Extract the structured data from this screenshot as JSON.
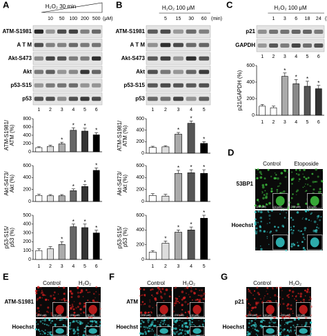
{
  "panels": {
    "A": {
      "letter": "A",
      "treatment": "H₂O₂ 30 min",
      "doses": [
        "10",
        "50",
        "100",
        "200",
        "500"
      ],
      "unit": "(μM)",
      "blots": [
        "ATM-S1981",
        "A T M",
        "Akt-S473",
        "Akt",
        "p53-S15",
        "p53"
      ],
      "lanes": [
        "1",
        "2",
        "3",
        "4",
        "5",
        "6"
      ]
    },
    "B": {
      "letter": "B",
      "treatment": "H₂O₂ 100 μM",
      "doses": [
        "5",
        "15",
        "30",
        "60"
      ],
      "unit": "(min)",
      "blots": [
        "ATM-S1981",
        "A T M",
        "Akt-S473",
        "Akt",
        "p53-S15",
        "p53"
      ],
      "lanes": [
        "1",
        "2",
        "3",
        "4",
        "5"
      ]
    },
    "C": {
      "letter": "C",
      "treatment": "H₂O₂ 100 μM",
      "doses": [
        "1",
        "3",
        "6",
        "18",
        "24"
      ],
      "unit": "(hr)",
      "blots": [
        "p21",
        "GAPDH"
      ],
      "lanes": [
        "1",
        "2",
        "3",
        "4",
        "5",
        "6"
      ]
    },
    "D": {
      "letter": "D",
      "columns": [
        "Control",
        "Etoposide"
      ],
      "rows": [
        "53BP1",
        "Hoechst"
      ],
      "scale_labels": [
        "(200 μM)",
        "(10 μM)"
      ]
    },
    "E": {
      "letter": "E",
      "columns": [
        "Control",
        "H₂O₂"
      ],
      "rows": [
        "ATM-S1981",
        "Hoechst"
      ],
      "scale_labels": [
        "(200 μM)",
        "(10 μM)"
      ]
    },
    "F": {
      "letter": "F",
      "columns": [
        "Control",
        "H₂O₂"
      ],
      "rows": [
        "ATM",
        "Hoechst"
      ],
      "scale_labels": [
        "(200 μM)",
        "(10 μM)"
      ]
    },
    "G": {
      "letter": "G",
      "columns": [
        "Control",
        "H₂O₂"
      ],
      "rows": [
        "p21",
        "Hoechst"
      ],
      "scale_labels": [
        "(200 μM)",
        "(10 μM)"
      ]
    }
  },
  "chart_data": [
    {
      "type": "bar",
      "ylabel": [
        "ATM-S1981/",
        "ATM (%)"
      ],
      "values": [
        100,
        130,
        190,
        520,
        500,
        410
      ],
      "errors": [
        20,
        30,
        40,
        60,
        70,
        50
      ],
      "colors": [
        "#ffffff",
        "#dddddd",
        "#aaaaaa",
        "#666666",
        "#333333",
        "#000000"
      ],
      "asterisk": "*",
      "starred": [
        false,
        false,
        true,
        true,
        true,
        true
      ],
      "ylim": [
        0,
        800
      ],
      "yticks": [
        0,
        200,
        400,
        600,
        800
      ]
    },
    {
      "type": "bar",
      "ylabel": [
        "Akt-S473/",
        "Akt (%)"
      ],
      "values": [
        100,
        95,
        95,
        180,
        250,
        520
      ],
      "errors": [
        20,
        20,
        20,
        30,
        30,
        40
      ],
      "colors": [
        "#ffffff",
        "#dddddd",
        "#aaaaaa",
        "#666666",
        "#333333",
        "#000000"
      ],
      "asterisk": "*",
      "starred": [
        false,
        false,
        false,
        true,
        true,
        true
      ],
      "ylim": [
        0,
        600
      ],
      "yticks": [
        0,
        200,
        400,
        600
      ]
    },
    {
      "type": "bar",
      "ylabel": [
        "p53-S15/",
        "p53 (%)"
      ],
      "values": [
        100,
        120,
        170,
        370,
        360,
        300
      ],
      "errors": [
        20,
        25,
        30,
        30,
        40,
        30
      ],
      "colors": [
        "#ffffff",
        "#dddddd",
        "#aaaaaa",
        "#666666",
        "#333333",
        "#000000"
      ],
      "asterisk": "*",
      "starred": [
        false,
        false,
        true,
        true,
        true,
        true
      ],
      "ylim": [
        0,
        500
      ],
      "yticks": [
        0,
        100,
        200,
        300,
        400,
        500
      ],
      "categories": [
        "1",
        "2",
        "3",
        "4",
        "5",
        "6"
      ]
    },
    {
      "type": "bar",
      "ylabel": [
        "ATM-S1981/",
        "ATM (%)"
      ],
      "values": [
        100,
        110,
        330,
        520,
        170
      ],
      "errors": [
        20,
        20,
        30,
        40,
        30
      ],
      "colors": [
        "#ffffff",
        "#dddddd",
        "#aaaaaa",
        "#555555",
        "#000000"
      ],
      "asterisk": "*",
      "starred": [
        false,
        false,
        true,
        true,
        true
      ],
      "ylim": [
        0,
        600
      ],
      "yticks": [
        0,
        200,
        400,
        600
      ]
    },
    {
      "type": "bar",
      "ylabel": [
        "Akt-S473/",
        "Akt (%)"
      ],
      "values": [
        100,
        90,
        470,
        480,
        470
      ],
      "errors": [
        30,
        30,
        50,
        50,
        60
      ],
      "colors": [
        "#ffffff",
        "#dddddd",
        "#aaaaaa",
        "#555555",
        "#000000"
      ],
      "asterisk": "*",
      "starred": [
        false,
        false,
        true,
        true,
        true
      ],
      "ylim": [
        0,
        600
      ],
      "yticks": [
        0,
        200,
        400,
        600
      ]
    },
    {
      "type": "bar",
      "ylabel": [
        "p53-S15/",
        "p53 (%)"
      ],
      "values": [
        100,
        220,
        370,
        400,
        560
      ],
      "errors": [
        20,
        30,
        30,
        40,
        40
      ],
      "colors": [
        "#ffffff",
        "#dddddd",
        "#aaaaaa",
        "#555555",
        "#000000"
      ],
      "asterisk": "*",
      "starred": [
        false,
        true,
        true,
        true,
        true
      ],
      "ylim": [
        0,
        600
      ],
      "yticks": [
        0,
        200,
        400,
        600
      ],
      "categories": [
        "1",
        "2",
        "3",
        "4",
        "5"
      ]
    },
    {
      "type": "bar",
      "ylabel": [
        "p21/GAPDH (%)"
      ],
      "values": [
        110,
        90,
        470,
        380,
        350,
        320
      ],
      "errors": [
        20,
        20,
        40,
        50,
        60,
        40
      ],
      "colors": [
        "#ffffff",
        "#ffffff",
        "#aaaaaa",
        "#888888",
        "#555555",
        "#333333"
      ],
      "asterisk": "*",
      "starred": [
        false,
        false,
        true,
        true,
        true,
        true
      ],
      "ylim": [
        0,
        600
      ],
      "yticks": [
        0,
        200,
        400,
        600
      ],
      "categories": [
        "1",
        "2",
        "3",
        "4",
        "5",
        "6"
      ]
    }
  ]
}
